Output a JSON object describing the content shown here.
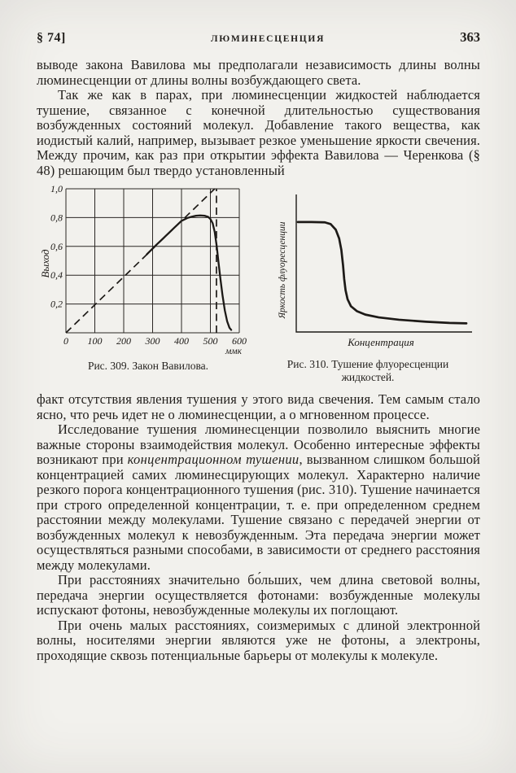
{
  "page": {
    "header": {
      "section": "§ 74]",
      "title": "ЛЮМИНЕСЦЕНЦИЯ",
      "page_number": "363"
    },
    "paragraphs": {
      "p1": "выводе закона Вавилова мы предполагали независимость длины волны люминесценции от длины волны возбуждающего света.",
      "p2": "Так же как в парах, при люминесценции жидкостей наблюдается тушение, связанное с конечной длительностью существования возбужденных состояний молекул. Добавление такого вещества, как иодистый калий, например, вызывает резкое уменьшение яркости свечения. Между прочим, как раз при открытии эффекта Вавилова — Черенкова (§ 48) решающим был твердо установленный",
      "p3": "факт отсутствия явления тушения у этого вида свечения. Тем самым стало ясно, что речь идет не о люминесценции, а о мгновенном процессе.",
      "p4_pre": "Исследование тушения люминесценции позволило выяснить многие важные стороны взаимодействия молекул. Особенно интересные эффекты возникают при ",
      "p4_italic": "концентрационном тушении",
      "p4_post": ", вызванном слишком большой концентрацией самих люминесцирующих молекул. Характерно наличие резкого порога концентрационного тушения (рис. 310). Тушение начинается при строго определенной концентрации, т. е. при определенном среднем расстоянии между молекулами. Тушение связано с передачей энергии от возбужденных молекул к невозбужденным. Эта передача энергии может осуществляться разными способами, в зависимости от среднего расстояния между молекулами.",
      "p5": "При расстояниях значительно бо́льших, чем длина световой волны, передача энергии осуществляется фотонами: возбужденные молекулы испускают фотоны, невозбужденные молекулы их поглощают.",
      "p6": "При очень малых расстояниях, соизмеримых с длиной электронной волны, носителями энергии являются уже не фотоны, а электроны, проходящие сквозь потенциальные барьеры от молекулы к молекуле."
    },
    "figures": {
      "fig309": {
        "caption": "Рис. 309. Закон Вавилова.",
        "ylabel": "Выход",
        "xunit": "ммк"
      },
      "fig310": {
        "caption_line1": "Рис. 310. Тушение флуоресценции",
        "caption_line2": "жидкостей.",
        "ylabel": "Яркость флуоресценции",
        "xlabel": "Концентрация"
      }
    }
  },
  "chart_data": [
    {
      "type": "line",
      "title": "Рис. 309. Закон Вавилова",
      "xlabel": "ммк",
      "ylabel": "Выход",
      "xlim": [
        0,
        600
      ],
      "ylim": [
        0,
        1.0
      ],
      "grid": true,
      "xticks": [
        0,
        100,
        200,
        300,
        400,
        500,
        600
      ],
      "yticks": [
        0,
        0.2,
        0.4,
        0.6,
        0.8,
        1.0
      ],
      "xtick_labels": [
        "0",
        "100",
        "200",
        "300",
        "400",
        "500",
        "600"
      ],
      "ytick_labels": [
        "0,2",
        "0,4",
        "0,6",
        "0,8",
        "1,0"
      ],
      "series": [
        {
          "id": "vavilov-diagonal-dashed",
          "name": "линейный закон (пунктир)",
          "style": "dashed",
          "x": [
            0,
            515
          ],
          "y": [
            0,
            1.0
          ]
        },
        {
          "id": "luminescence-yield-curve",
          "name": "выход люминесценции",
          "style": "solid",
          "x": [
            280,
            310,
            340,
            370,
            400,
            420,
            435,
            450,
            465,
            480,
            492,
            500,
            508,
            515,
            522,
            528,
            535,
            542,
            550,
            558,
            566,
            572
          ],
          "y": [
            0.545,
            0.605,
            0.662,
            0.72,
            0.777,
            0.797,
            0.806,
            0.813,
            0.815,
            0.813,
            0.805,
            0.79,
            0.76,
            0.7,
            0.6,
            0.49,
            0.37,
            0.26,
            0.155,
            0.08,
            0.035,
            0.02
          ]
        },
        {
          "id": "threshold-vertical-dashed",
          "name": "граница возбуждения (вертикальный пунктир)",
          "style": "dashed",
          "x": [
            521,
            521
          ],
          "y": [
            0,
            1.0
          ]
        }
      ]
    },
    {
      "type": "line",
      "title": "Рис. 310. Тушение флуоресценции жидкостей",
      "xlabel": "Концентрация",
      "ylabel": "Яркость флуоресценции",
      "axes_numeric": false,
      "grid": false,
      "series": [
        {
          "id": "quenching-curve",
          "name": "яркость флуоресценции от концентрации (относительные координаты)",
          "style": "thick",
          "x_rel": [
            0.0,
            0.08,
            0.16,
            0.195,
            0.225,
            0.245,
            0.258,
            0.268,
            0.275,
            0.283,
            0.295,
            0.315,
            0.35,
            0.4,
            0.48,
            0.6,
            0.76,
            0.9,
            1.0
          ],
          "y_rel": [
            0.79,
            0.79,
            0.788,
            0.775,
            0.735,
            0.672,
            0.59,
            0.48,
            0.38,
            0.3,
            0.235,
            0.185,
            0.15,
            0.125,
            0.105,
            0.088,
            0.074,
            0.065,
            0.062
          ]
        }
      ]
    }
  ]
}
